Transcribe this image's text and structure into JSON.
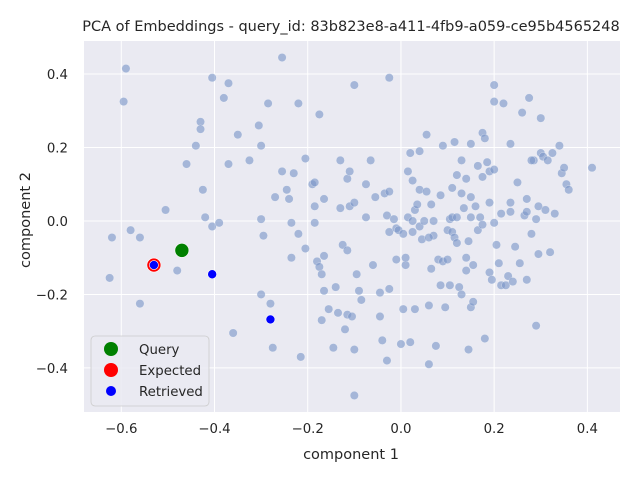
{
  "chart_data": {
    "type": "scatter",
    "title": "PCA of Embeddings - query_id: 83b823e8-a411-4fb9-a059-ce95b4565248",
    "xlabel": "component 1",
    "ylabel": "component 2",
    "xlim": [
      -0.68,
      0.47
    ],
    "ylim": [
      -0.52,
      0.49
    ],
    "xticks": [
      -0.6,
      -0.4,
      -0.2,
      0.0,
      0.2,
      0.4
    ],
    "xtick_labels": [
      "−0.6",
      "−0.4",
      "−0.2",
      "0.0",
      "0.2",
      "0.4"
    ],
    "yticks": [
      -0.4,
      -0.2,
      0.0,
      0.2,
      0.4
    ],
    "ytick_labels": [
      "−0.4",
      "−0.2",
      "0.0",
      "0.2",
      "0.4"
    ],
    "grid": true,
    "legend_position": "lower-left",
    "colors": {
      "background": "#eaeaf2",
      "grid": "#ffffff",
      "points": "#7b96c8",
      "query": "#008000",
      "expected": "#ff0000",
      "retrieved": "#0000ff"
    },
    "series": [
      {
        "name": "",
        "points": [
          [
            -0.59,
            0.415
          ],
          [
            -0.595,
            0.325
          ],
          [
            -0.62,
            -0.045
          ],
          [
            -0.625,
            -0.155
          ],
          [
            -0.58,
            -0.025
          ],
          [
            -0.56,
            -0.045
          ],
          [
            -0.56,
            -0.225
          ],
          [
            -0.505,
            0.03
          ],
          [
            -0.48,
            -0.135
          ],
          [
            -0.46,
            0.155
          ],
          [
            -0.43,
            0.27
          ],
          [
            -0.43,
            0.25
          ],
          [
            -0.44,
            0.205
          ],
          [
            -0.425,
            0.085
          ],
          [
            -0.42,
            0.01
          ],
          [
            -0.405,
            0.39
          ],
          [
            -0.405,
            -0.015
          ],
          [
            -0.39,
            -0.005
          ],
          [
            -0.38,
            0.335
          ],
          [
            -0.37,
            0.375
          ],
          [
            -0.37,
            0.155
          ],
          [
            -0.36,
            -0.305
          ],
          [
            -0.35,
            0.235
          ],
          [
            -0.325,
            0.165
          ],
          [
            -0.305,
            0.26
          ],
          [
            -0.3,
            0.205
          ],
          [
            -0.3,
            0.005
          ],
          [
            -0.295,
            -0.04
          ],
          [
            -0.3,
            -0.2
          ],
          [
            -0.285,
            0.32
          ],
          [
            -0.27,
            0.065
          ],
          [
            -0.28,
            -0.225
          ],
          [
            -0.275,
            -0.345
          ],
          [
            -0.255,
            0.445
          ],
          [
            -0.255,
            0.135
          ],
          [
            -0.245,
            0.085
          ],
          [
            -0.24,
            0.06
          ],
          [
            -0.235,
            -0.005
          ],
          [
            -0.235,
            -0.1
          ],
          [
            -0.23,
            0.13
          ],
          [
            -0.22,
            0.32
          ],
          [
            -0.22,
            -0.035
          ],
          [
            -0.215,
            -0.37
          ],
          [
            -0.205,
            0.17
          ],
          [
            -0.205,
            -0.075
          ],
          [
            -0.19,
            0.1
          ],
          [
            -0.185,
            0.105
          ],
          [
            -0.185,
            0.04
          ],
          [
            -0.185,
            -0.005
          ],
          [
            -0.18,
            -0.11
          ],
          [
            -0.175,
            0.29
          ],
          [
            -0.175,
            -0.125
          ],
          [
            -0.17,
            -0.145
          ],
          [
            -0.165,
            0.06
          ],
          [
            -0.165,
            -0.095
          ],
          [
            -0.17,
            -0.27
          ],
          [
            -0.165,
            -0.19
          ],
          [
            -0.155,
            -0.24
          ],
          [
            -0.145,
            -0.345
          ],
          [
            -0.14,
            -0.18
          ],
          [
            -0.135,
            -0.25
          ],
          [
            -0.13,
            0.035
          ],
          [
            -0.13,
            0.165
          ],
          [
            -0.125,
            -0.065
          ],
          [
            -0.12,
            -0.295
          ],
          [
            -0.115,
            0.115
          ],
          [
            -0.115,
            -0.08
          ],
          [
            -0.115,
            -0.255
          ],
          [
            -0.11,
            0.135
          ],
          [
            -0.11,
            0.04
          ],
          [
            -0.105,
            -0.26
          ],
          [
            -0.1,
            -0.35
          ],
          [
            -0.1,
            -0.475
          ],
          [
            -0.1,
            0.37
          ],
          [
            -0.1,
            0.05
          ],
          [
            -0.095,
            -0.145
          ],
          [
            -0.09,
            -0.19
          ],
          [
            -0.085,
            -0.215
          ],
          [
            -0.075,
            0.1
          ],
          [
            -0.075,
            0.01
          ],
          [
            -0.065,
            0.165
          ],
          [
            -0.06,
            -0.12
          ],
          [
            -0.055,
            0.065
          ],
          [
            -0.045,
            -0.195
          ],
          [
            -0.045,
            -0.26
          ],
          [
            -0.04,
            -0.325
          ],
          [
            -0.035,
            0.075
          ],
          [
            -0.03,
            0.015
          ],
          [
            -0.03,
            -0.38
          ],
          [
            -0.025,
            0.39
          ],
          [
            -0.025,
            0.08
          ],
          [
            -0.025,
            -0.03
          ],
          [
            -0.015,
            0.005
          ],
          [
            -0.01,
            -0.02
          ],
          [
            -0.01,
            -0.105
          ],
          [
            -0.005,
            -0.025
          ],
          [
            0.0,
            -0.335
          ],
          [
            0.005,
            -0.035
          ],
          [
            0.005,
            -0.24
          ],
          [
            0.01,
            -0.12
          ],
          [
            0.01,
            -0.1
          ],
          [
            0.015,
            0.135
          ],
          [
            0.015,
            0.01
          ],
          [
            0.02,
            0.185
          ],
          [
            0.02,
            -0.33
          ],
          [
            0.025,
            0.11
          ],
          [
            0.025,
            0.0
          ],
          [
            0.025,
            -0.03
          ],
          [
            0.03,
            -0.24
          ],
          [
            0.03,
            0.03
          ],
          [
            0.035,
            0.045
          ],
          [
            0.04,
            0.19
          ],
          [
            0.04,
            0.085
          ],
          [
            0.04,
            -0.015
          ],
          [
            0.045,
            -0.05
          ],
          [
            0.05,
            0.0
          ],
          [
            0.055,
            0.235
          ],
          [
            0.055,
            0.08
          ],
          [
            0.06,
            -0.39
          ],
          [
            0.06,
            -0.23
          ],
          [
            0.065,
            -0.13
          ],
          [
            0.065,
            0.045
          ],
          [
            0.07,
            0.0
          ],
          [
            0.07,
            -0.04
          ],
          [
            0.075,
            -0.34
          ],
          [
            0.08,
            -0.105
          ],
          [
            0.085,
            0.07
          ],
          [
            0.085,
            -0.175
          ],
          [
            0.09,
            0.205
          ],
          [
            0.09,
            -0.11
          ],
          [
            0.095,
            -0.235
          ],
          [
            0.1,
            -0.025
          ],
          [
            0.1,
            -0.105
          ],
          [
            0.105,
            0.005
          ],
          [
            0.105,
            -0.175
          ],
          [
            0.11,
            0.09
          ],
          [
            0.11,
            0.01
          ],
          [
            0.11,
            -0.03
          ],
          [
            0.115,
            0.215
          ],
          [
            0.115,
            -0.045
          ],
          [
            0.12,
            0.125
          ],
          [
            0.12,
            0.01
          ],
          [
            0.12,
            -0.06
          ],
          [
            0.125,
            -0.18
          ],
          [
            0.13,
            0.165
          ],
          [
            0.13,
            0.075
          ],
          [
            0.13,
            -0.2
          ],
          [
            0.135,
            0.035
          ],
          [
            0.14,
            0.115
          ],
          [
            0.14,
            -0.1
          ],
          [
            0.14,
            -0.135
          ],
          [
            0.145,
            -0.055
          ],
          [
            0.145,
            -0.35
          ],
          [
            0.15,
            0.21
          ],
          [
            0.15,
            0.065
          ],
          [
            0.15,
            0.01
          ],
          [
            0.15,
            -0.235
          ],
          [
            0.155,
            -0.12
          ],
          [
            0.16,
            0.04
          ],
          [
            0.165,
            0.15
          ],
          [
            0.165,
            -0.025
          ],
          [
            0.17,
            0.01
          ],
          [
            0.175,
            0.24
          ],
          [
            0.175,
            0.12
          ],
          [
            0.175,
            -0.01
          ],
          [
            0.18,
            0.225
          ],
          [
            0.18,
            -0.32
          ],
          [
            0.185,
            0.16
          ],
          [
            0.19,
            0.135
          ],
          [
            0.19,
            0.05
          ],
          [
            0.19,
            -0.14
          ],
          [
            0.2,
            0.37
          ],
          [
            0.2,
            0.325
          ],
          [
            0.2,
            0.14
          ],
          [
            0.2,
            -0.005
          ],
          [
            0.205,
            -0.065
          ],
          [
            0.21,
            -0.115
          ],
          [
            0.215,
            0.02
          ],
          [
            0.215,
            -0.175
          ],
          [
            0.22,
            0.32
          ],
          [
            0.225,
            -0.175
          ],
          [
            0.23,
            -0.15
          ],
          [
            0.235,
            0.21
          ],
          [
            0.235,
            0.05
          ],
          [
            0.235,
            0.025
          ],
          [
            0.24,
            -0.165
          ],
          [
            0.245,
            -0.07
          ],
          [
            0.25,
            0.105
          ],
          [
            0.255,
            -0.115
          ],
          [
            0.26,
            0.295
          ],
          [
            0.265,
            0.015
          ],
          [
            0.27,
            0.06
          ],
          [
            0.27,
            0.025
          ],
          [
            0.27,
            -0.16
          ],
          [
            0.275,
            0.335
          ],
          [
            0.28,
            -0.035
          ],
          [
            0.285,
            0.165
          ],
          [
            0.29,
            -0.285
          ],
          [
            0.29,
            0.005
          ],
          [
            0.295,
            0.04
          ],
          [
            0.295,
            -0.09
          ],
          [
            0.3,
            0.28
          ],
          [
            0.3,
            0.185
          ],
          [
            0.305,
            0.175
          ],
          [
            0.31,
            0.03
          ],
          [
            0.315,
            0.165
          ],
          [
            0.32,
            -0.085
          ],
          [
            0.325,
            0.185
          ],
          [
            0.33,
            0.02
          ],
          [
            0.34,
            0.205
          ],
          [
            0.345,
            0.13
          ],
          [
            0.35,
            0.145
          ],
          [
            0.355,
            0.1
          ],
          [
            0.36,
            0.085
          ],
          [
            0.41,
            0.145
          ],
          [
            -0.025,
            -0.185
          ],
          [
            0.28,
            0.165
          ],
          [
            0.195,
            -0.16
          ],
          [
            0.06,
            -0.045
          ],
          [
            0.155,
            -0.22
          ]
        ]
      },
      {
        "name": "Query",
        "points": [
          [
            -0.47,
            -0.08
          ]
        ]
      },
      {
        "name": "Expected",
        "points": [
          [
            -0.53,
            -0.12
          ]
        ]
      },
      {
        "name": "Retrieved",
        "points": [
          [
            -0.53,
            -0.12
          ],
          [
            -0.405,
            -0.145
          ],
          [
            -0.28,
            -0.268
          ]
        ]
      }
    ],
    "legend": [
      "Query",
      "Expected",
      "Retrieved"
    ]
  }
}
